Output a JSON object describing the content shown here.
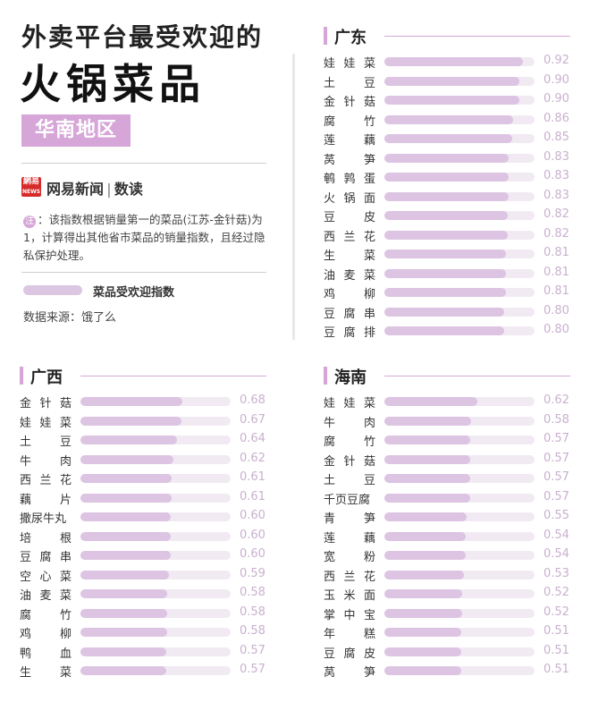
{
  "header": {
    "title_line1": "外卖平台最受欢迎的",
    "title_line2": "火锅菜品",
    "region": "华南地区"
  },
  "brand": {
    "logo_text": "網易\nNEWS",
    "name": "网易新闻",
    "separator": "|",
    "sub": "数读"
  },
  "note": {
    "badge": "注",
    "text": "：该指数根据销量第一的菜品(江苏-金针菇)为1，计算得出其他省市菜品的销量指数，且经过隐私保护处理。"
  },
  "legend": {
    "label": "菜品受欢迎指数"
  },
  "source": {
    "text": "数据来源：饿了么"
  },
  "colors": {
    "accent": "#d6a6d8",
    "bar": "#dcc4e2",
    "track": "#f1eaf3",
    "value": "#c9b0cf"
  },
  "chart_data": [
    {
      "type": "bar",
      "title": "广东",
      "categories": [
        "娃娃菜",
        "土豆",
        "金针菇",
        "腐竹",
        "莲藕",
        "莴笋",
        "鹌鹑蛋",
        "火锅面",
        "豆皮",
        "西兰花",
        "生菜",
        "油麦菜",
        "鸡柳",
        "豆腐串",
        "豆腐排"
      ],
      "values": [
        0.92,
        0.9,
        0.9,
        0.86,
        0.85,
        0.83,
        0.83,
        0.83,
        0.82,
        0.82,
        0.81,
        0.81,
        0.81,
        0.8,
        0.8
      ],
      "value_labels": [
        "0.92",
        "0.90",
        "0.90",
        "0.86",
        "0.85",
        "0.83",
        "0.83",
        "0.83",
        "0.82",
        "0.82",
        "0.81",
        "0.81",
        "0.81",
        "0.80",
        "0.80"
      ],
      "ylim": [
        0,
        1
      ]
    },
    {
      "type": "bar",
      "title": "广西",
      "categories": [
        "金针菇",
        "娃娃菜",
        "土豆",
        "牛肉",
        "西兰花",
        "藕片",
        "撒尿牛丸",
        "培根",
        "豆腐串",
        "空心菜",
        "油麦菜",
        "腐竹",
        "鸡柳",
        "鸭血",
        "生菜"
      ],
      "values": [
        0.68,
        0.67,
        0.64,
        0.62,
        0.61,
        0.61,
        0.6,
        0.6,
        0.6,
        0.59,
        0.58,
        0.58,
        0.58,
        0.57,
        0.57
      ],
      "value_labels": [
        "0.68",
        "0.67",
        "0.64",
        "0.62",
        "0.61",
        "0.61",
        "0.60",
        "0.60",
        "0.60",
        "0.59",
        "0.58",
        "0.58",
        "0.58",
        "0.57",
        "0.57"
      ],
      "ylim": [
        0,
        1
      ]
    },
    {
      "type": "bar",
      "title": "海南",
      "categories": [
        "娃娃菜",
        "牛肉",
        "腐竹",
        "金针菇",
        "土豆",
        "千页豆腐",
        "青笋",
        "莲藕",
        "宽粉",
        "西兰花",
        "玉米面",
        "掌中宝",
        "年糕",
        "豆腐皮",
        "莴笋"
      ],
      "values": [
        0.62,
        0.58,
        0.57,
        0.57,
        0.57,
        0.57,
        0.55,
        0.54,
        0.54,
        0.53,
        0.52,
        0.52,
        0.51,
        0.51,
        0.51
      ],
      "value_labels": [
        "0.62",
        "0.58",
        "0.57",
        "0.57",
        "0.57",
        "0.57",
        "0.55",
        "0.54",
        "0.54",
        "0.53",
        "0.52",
        "0.52",
        "0.51",
        "0.51",
        "0.51"
      ],
      "ylim": [
        0,
        1
      ]
    }
  ]
}
